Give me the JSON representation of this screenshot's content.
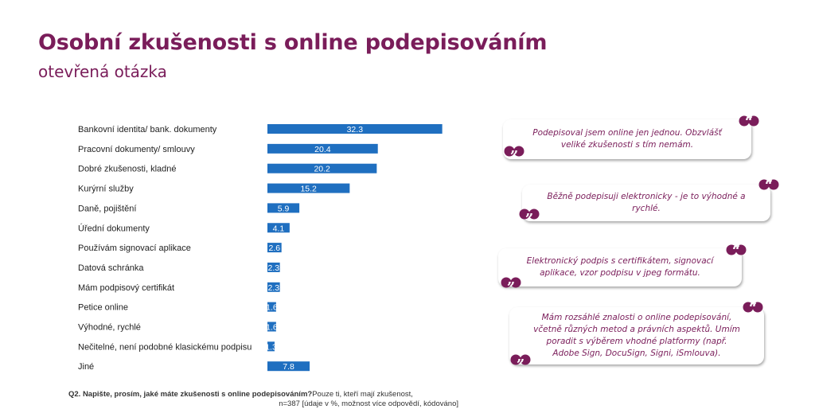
{
  "header": {
    "title": "Osobní zkušenosti s online podepisováním",
    "subtitle": "otevřená otázka"
  },
  "chart_data": {
    "type": "bar",
    "orientation": "horizontal",
    "categories": [
      "Bankovní identita/ bank. dokumenty",
      "Pracovní dokumenty/ smlouvy",
      "Dobré zkušenosti, kladné",
      "Kurýrní služby",
      "Daně, pojištění",
      "Úřední dokumenty",
      "Používám signovací aplikace",
      "Datová schránka",
      "Mám podpisový certifikát",
      "Petice online",
      "Výhodné, rychlé",
      "Nečitelné, není podobné klasickému podpisu",
      "Jiné"
    ],
    "values": [
      32.3,
      20.4,
      20.2,
      15.2,
      5.9,
      4.1,
      2.6,
      2.3,
      2.3,
      1.6,
      1.6,
      1.3,
      7.8
    ],
    "value_labels": [
      "32.3",
      "20.4",
      "20.2",
      "15.2",
      "5.9",
      "4.1",
      "2.6",
      "2.3",
      "2.3",
      "1.6",
      "1.6",
      "1.3",
      "7.8"
    ],
    "xlim": [
      0,
      35
    ],
    "bar_color": "#1f6fc0",
    "grid": false
  },
  "footnote": {
    "question": "Q2.  Napište, prosím, jaké máte zkušenosti s online podepisováním?",
    "filter": "Pouze ti, kteří mají zkušenost,",
    "base": "n=387 [údaje v %, možnost více odpovědí, kódováno]"
  },
  "quotes": [
    {
      "text": "Podepisoval jsem online jen jednou. Obzvlášť veliké zkušenosti s tím nemám."
    },
    {
      "text": "Běžně podepisuji elektronicky - je to výhodné a rychlé."
    },
    {
      "text": "Elektronický podpis s certifikátem, signovací aplikace, vzor podpisu v jpeg formátu."
    },
    {
      "text": "Mám rozsáhlé znalosti o online podepisování, včetně různých metod a právních aspektů. Umím poradit s výběrem vhodné platformy (např. Adobe Sign, DocuSign, Signi, iSmlouva)."
    }
  ],
  "colors": {
    "accent": "#7a1d5a",
    "bar": "#1f6fc0"
  },
  "icons": {
    "open_quote": "open-quote-icon",
    "close_quote": "close-quote-icon"
  }
}
